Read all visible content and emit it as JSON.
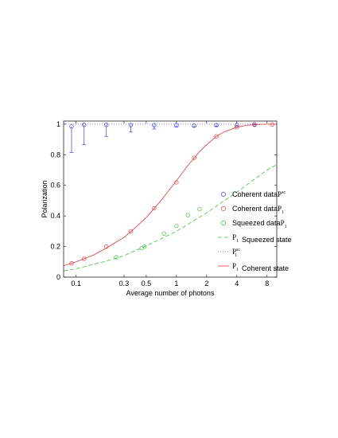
{
  "chart_data": {
    "type": "scatter",
    "xlabel": "Average number of photons",
    "ylabel": "Polarization",
    "xscale": "log",
    "xlim": [
      0.075,
      10
    ],
    "ylim": [
      0,
      1.02
    ],
    "x_ticks": [
      {
        "value": 0.1,
        "label": "0.1"
      },
      {
        "value": 0.3,
        "label": "0.3"
      },
      {
        "value": 0.5,
        "label": "0.5"
      },
      {
        "value": 1,
        "label": "1"
      },
      {
        "value": 2,
        "label": "2"
      },
      {
        "value": 4,
        "label": "4"
      },
      {
        "value": 8,
        "label": "8"
      }
    ],
    "y_ticks": [
      {
        "value": 0,
        "label": "0"
      },
      {
        "value": 0.2,
        "label": "0.2"
      },
      {
        "value": 0.4,
        "label": "0.4"
      },
      {
        "value": 0.6,
        "label": "0.6"
      },
      {
        "value": 0.8,
        "label": "0.8"
      },
      {
        "value": 1,
        "label": "1"
      }
    ],
    "legend_position": "right",
    "series": [
      {
        "name": "Coherent data",
        "sym": "P",
        "sup": "sc",
        "sub": "",
        "kind": "points",
        "marker": "circle",
        "color": "#3a3ad6",
        "points": [
          {
            "x": 0.09,
            "y": 0.985,
            "err_low": 0.17
          },
          {
            "x": 0.12,
            "y": 0.995,
            "err_low": 0.13
          },
          {
            "x": 0.2,
            "y": 0.995,
            "err_low": 0.075
          },
          {
            "x": 0.35,
            "y": 0.993,
            "err_low": 0.045
          },
          {
            "x": 0.6,
            "y": 0.993,
            "err_low": 0.025
          },
          {
            "x": 1.0,
            "y": 0.993,
            "err_low": 0.012
          },
          {
            "x": 1.5,
            "y": 0.99,
            "err_low": 0.01
          },
          {
            "x": 2.5,
            "y": 0.993,
            "err_low": 0.006
          },
          {
            "x": 4.0,
            "y": 0.993,
            "err_low": 0.004
          },
          {
            "x": 6.0,
            "y": 0.998,
            "err_low": 0.002
          }
        ]
      },
      {
        "name": "Coherent data",
        "sym": "P",
        "sup": "",
        "sub": "1",
        "kind": "points",
        "marker": "circle",
        "color": "#e23a3a",
        "points": [
          {
            "x": 0.09,
            "y": 0.09
          },
          {
            "x": 0.12,
            "y": 0.12
          },
          {
            "x": 0.2,
            "y": 0.2
          },
          {
            "x": 0.35,
            "y": 0.3
          },
          {
            "x": 0.6,
            "y": 0.45
          },
          {
            "x": 1.0,
            "y": 0.62
          },
          {
            "x": 1.5,
            "y": 0.78
          },
          {
            "x": 2.5,
            "y": 0.92
          },
          {
            "x": 4.0,
            "y": 0.98
          },
          {
            "x": 6.0,
            "y": 0.995
          },
          {
            "x": 9.0,
            "y": 0.998
          }
        ]
      },
      {
        "name": "Squeezed data",
        "sym": "P",
        "sup": "",
        "sub": "1",
        "kind": "points",
        "marker": "circle",
        "color": "#3bbf3b",
        "points": [
          {
            "x": 0.25,
            "y": 0.13
          },
          {
            "x": 0.45,
            "y": 0.19
          },
          {
            "x": 0.48,
            "y": 0.2
          },
          {
            "x": 0.75,
            "y": 0.285
          },
          {
            "x": 1.0,
            "y": 0.335
          },
          {
            "x": 1.3,
            "y": 0.405
          },
          {
            "x": 1.7,
            "y": 0.445
          }
        ]
      },
      {
        "name": "Squeezed state",
        "sym": "P",
        "sup": "",
        "sub": "1",
        "kind": "line",
        "style": "dashed",
        "color": "#3bbf3b",
        "points": [
          {
            "x": 0.075,
            "y": 0.04
          },
          {
            "x": 0.1,
            "y": 0.055
          },
          {
            "x": 0.2,
            "y": 0.105
          },
          {
            "x": 0.3,
            "y": 0.14
          },
          {
            "x": 0.5,
            "y": 0.205
          },
          {
            "x": 0.7,
            "y": 0.25
          },
          {
            "x": 1.0,
            "y": 0.3
          },
          {
            "x": 1.5,
            "y": 0.37
          },
          {
            "x": 2.0,
            "y": 0.42
          },
          {
            "x": 3.0,
            "y": 0.5
          },
          {
            "x": 4.0,
            "y": 0.555
          },
          {
            "x": 6.0,
            "y": 0.64
          },
          {
            "x": 8.0,
            "y": 0.7
          },
          {
            "x": 10.0,
            "y": 0.735
          }
        ]
      },
      {
        "name": "",
        "sym": "P",
        "sup": "sc",
        "sub": "1",
        "kind": "line",
        "style": "dotted",
        "color": "#5a5ad6",
        "points": [
          {
            "x": 0.075,
            "y": 1.0
          },
          {
            "x": 10.0,
            "y": 1.0
          }
        ]
      },
      {
        "name": "Coherent state",
        "sym": "P",
        "sup": "",
        "sub": "1",
        "kind": "line",
        "style": "solid",
        "color": "#e23a3a",
        "points": [
          {
            "x": 0.075,
            "y": 0.075
          },
          {
            "x": 0.1,
            "y": 0.1
          },
          {
            "x": 0.15,
            "y": 0.145
          },
          {
            "x": 0.2,
            "y": 0.19
          },
          {
            "x": 0.3,
            "y": 0.26
          },
          {
            "x": 0.4,
            "y": 0.33
          },
          {
            "x": 0.5,
            "y": 0.39
          },
          {
            "x": 0.7,
            "y": 0.5
          },
          {
            "x": 1.0,
            "y": 0.63
          },
          {
            "x": 1.3,
            "y": 0.73
          },
          {
            "x": 1.7,
            "y": 0.82
          },
          {
            "x": 2.0,
            "y": 0.865
          },
          {
            "x": 2.5,
            "y": 0.92
          },
          {
            "x": 3.0,
            "y": 0.95
          },
          {
            "x": 4.0,
            "y": 0.98
          },
          {
            "x": 5.0,
            "y": 0.992
          },
          {
            "x": 6.0,
            "y": 0.997
          },
          {
            "x": 8.0,
            "y": 1.0
          },
          {
            "x": 10.0,
            "y": 1.0
          }
        ]
      }
    ]
  }
}
